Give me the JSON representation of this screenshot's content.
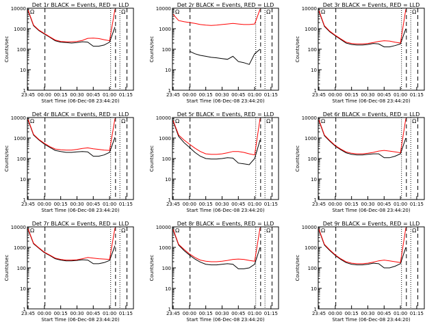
{
  "chart_data": [
    {
      "type": "line",
      "title": "Det 1r BLACK = Events, RED = LLD",
      "xlabel": "Start Time (06-Dec-08 23:44:20)",
      "ylabel": "Counts/sec",
      "yscale": "log",
      "ylim": [
        1,
        10000
      ],
      "xticks": [
        "23:45",
        "00:00",
        "00:15",
        "00:30",
        "00:45",
        "01:00",
        "01:15"
      ],
      "yticks": [
        "1",
        "10",
        "100",
        "1000",
        "10000"
      ],
      "markers": [
        "Ω",
        "Ω"
      ],
      "colors": {
        "events": "#000000",
        "lld": "#ff0000"
      },
      "series": [
        {
          "name": "Events",
          "x": [
            "23:45",
            "23:50",
            "23:55",
            "00:00",
            "00:05",
            "00:10",
            "00:15",
            "00:20",
            "00:25",
            "00:30",
            "00:35",
            "00:40",
            "00:45",
            "00:50",
            "00:55",
            "01:00",
            "01:05"
          ],
          "y": [
            7500,
            1400,
            800,
            550,
            380,
            260,
            220,
            210,
            200,
            210,
            230,
            220,
            140,
            140,
            160,
            220,
            1200
          ]
        },
        {
          "name": "LLD",
          "x": [
            "23:45",
            "23:50",
            "23:55",
            "00:00",
            "00:05",
            "00:10",
            "00:15",
            "00:20",
            "00:25",
            "00:30",
            "00:35",
            "00:40",
            "00:45",
            "00:50",
            "00:55",
            "01:00",
            "01:05"
          ],
          "y": [
            8000,
            1500,
            850,
            580,
            400,
            280,
            240,
            230,
            230,
            240,
            270,
            340,
            350,
            330,
            290,
            260,
            9000
          ]
        }
      ]
    },
    {
      "type": "line",
      "title": "Det 2r BLACK = Events, RED = LLD",
      "xlabel": "Start Time (06-Dec-08 23:44:20)",
      "ylabel": "Counts/sec",
      "yscale": "log",
      "ylim": [
        1,
        10000
      ],
      "xticks": [
        "23:45",
        "00:00",
        "00:15",
        "00:30",
        "00:45",
        "01:00",
        "01:15"
      ],
      "yticks": [
        "1",
        "10",
        "100",
        "1000",
        "10000"
      ],
      "markers": [
        "Ω",
        "Ω"
      ],
      "colors": {
        "events": "#000000",
        "lld": "#ff0000"
      },
      "series": [
        {
          "name": "Events",
          "x": [
            "00:00",
            "00:05",
            "00:10",
            "00:15",
            "00:20",
            "00:25",
            "00:30",
            "00:35",
            "00:40",
            "00:45",
            "00:50",
            "00:55",
            "01:00",
            "01:05"
          ],
          "y": [
            80,
            60,
            50,
            45,
            40,
            38,
            35,
            32,
            45,
            25,
            22,
            18,
            60,
            100
          ]
        },
        {
          "name": "LLD",
          "x": [
            "23:45",
            "23:50",
            "23:55",
            "00:00",
            "00:05",
            "00:10",
            "00:15",
            "00:20",
            "00:25",
            "00:30",
            "00:35",
            "00:40",
            "00:45",
            "00:50",
            "00:55",
            "01:00",
            "01:05"
          ],
          "y": [
            5000,
            2500,
            2200,
            2000,
            1800,
            1600,
            1500,
            1450,
            1500,
            1600,
            1700,
            1800,
            1700,
            1600,
            1600,
            1700,
            9000
          ]
        }
      ]
    },
    {
      "type": "line",
      "title": "Det 3r BLACK = Events, RED = LLD",
      "xlabel": "Start Time (06-Dec-08 23:44:20)",
      "ylabel": "Counts/sec",
      "yscale": "log",
      "ylim": [
        1,
        10000
      ],
      "xticks": [
        "23:45",
        "00:00",
        "00:15",
        "00:30",
        "00:45",
        "01:00",
        "01:15"
      ],
      "yticks": [
        "1",
        "10",
        "100",
        "1000",
        "10000"
      ],
      "markers": [
        "Ω",
        "Ω"
      ],
      "colors": {
        "events": "#000000",
        "lld": "#ff0000"
      },
      "series": [
        {
          "name": "Events",
          "x": [
            "23:45",
            "23:50",
            "23:55",
            "00:00",
            "00:05",
            "00:10",
            "00:15",
            "00:20",
            "00:25",
            "00:30",
            "00:35",
            "00:40",
            "00:45",
            "00:50",
            "00:55",
            "01:00",
            "01:05"
          ],
          "y": [
            7000,
            1300,
            700,
            450,
            300,
            200,
            170,
            160,
            160,
            170,
            190,
            180,
            130,
            130,
            150,
            180,
            1000
          ]
        },
        {
          "name": "LLD",
          "x": [
            "23:45",
            "23:50",
            "23:55",
            "00:00",
            "00:05",
            "00:10",
            "00:15",
            "00:20",
            "00:25",
            "00:30",
            "00:35",
            "00:40",
            "00:45",
            "00:50",
            "00:55",
            "01:00",
            "01:05"
          ],
          "y": [
            7500,
            1400,
            750,
            480,
            320,
            220,
            190,
            180,
            180,
            190,
            210,
            240,
            260,
            250,
            220,
            200,
            9000
          ]
        }
      ]
    },
    {
      "type": "line",
      "title": "Det 4r BLACK = Events, RED = LLD",
      "xlabel": "Start Time (06-Dec-08 23:44:20)",
      "ylabel": "Counts/sec",
      "yscale": "log",
      "ylim": [
        1,
        10000
      ],
      "xticks": [
        "23:45",
        "00:00",
        "00:15",
        "00:30",
        "00:45",
        "01:00",
        "01:15"
      ],
      "yticks": [
        "1",
        "10",
        "100",
        "1000",
        "10000"
      ],
      "markers": [
        "Ω",
        "Ω"
      ],
      "colors": {
        "events": "#000000",
        "lld": "#ff0000"
      },
      "series": [
        {
          "name": "Events",
          "x": [
            "23:45",
            "23:50",
            "23:55",
            "00:00",
            "00:05",
            "00:10",
            "00:15",
            "00:20",
            "00:25",
            "00:30",
            "00:35",
            "00:40",
            "00:45",
            "00:50",
            "00:55",
            "01:00",
            "01:05"
          ],
          "y": [
            7500,
            1400,
            800,
            500,
            350,
            250,
            220,
            200,
            200,
            210,
            220,
            210,
            130,
            130,
            150,
            200,
            1100
          ]
        },
        {
          "name": "LLD",
          "x": [
            "23:45",
            "23:50",
            "23:55",
            "00:00",
            "00:05",
            "00:10",
            "00:15",
            "00:20",
            "00:25",
            "00:30",
            "00:35",
            "00:40",
            "00:45",
            "00:50",
            "00:55",
            "01:00",
            "01:05"
          ],
          "y": [
            8000,
            1500,
            850,
            550,
            380,
            290,
            270,
            260,
            260,
            280,
            310,
            330,
            300,
            280,
            260,
            250,
            9000
          ]
        }
      ]
    },
    {
      "type": "line",
      "title": "Det 5r BLACK = Events, RED = LLD",
      "xlabel": "Start Time (06-Dec-08 23:44:20)",
      "ylabel": "Counts/sec",
      "yscale": "log",
      "ylim": [
        1,
        10000
      ],
      "xticks": [
        "23:45",
        "00:00",
        "00:15",
        "00:30",
        "00:45",
        "01:00",
        "01:15"
      ],
      "yticks": [
        "1",
        "10",
        "100",
        "1000",
        "10000"
      ],
      "markers": [
        "Ω",
        "Ω"
      ],
      "colors": {
        "events": "#000000",
        "lld": "#ff0000"
      },
      "series": [
        {
          "name": "Events",
          "x": [
            "23:45",
            "23:50",
            "23:55",
            "00:00",
            "00:05",
            "00:10",
            "00:15",
            "00:20",
            "00:25",
            "00:30",
            "00:35",
            "00:40",
            "00:45",
            "00:50",
            "00:55",
            "01:00",
            "01:05"
          ],
          "y": [
            6500,
            1200,
            600,
            350,
            200,
            130,
            100,
            95,
            95,
            100,
            110,
            105,
            60,
            55,
            50,
            100,
            800
          ]
        },
        {
          "name": "LLD",
          "x": [
            "23:45",
            "23:50",
            "23:55",
            "00:00",
            "00:05",
            "00:10",
            "00:15",
            "00:20",
            "00:25",
            "00:30",
            "00:35",
            "00:40",
            "00:45",
            "00:50",
            "00:55",
            "01:00",
            "01:05"
          ],
          "y": [
            7000,
            1400,
            800,
            500,
            320,
            220,
            170,
            160,
            160,
            170,
            190,
            220,
            220,
            200,
            170,
            150,
            9000
          ]
        }
      ]
    },
    {
      "type": "line",
      "title": "Det 6r BLACK = Events, RED = LLD",
      "xlabel": "Start Time (06-Dec-08 23:44:20)",
      "ylabel": "Counts/sec",
      "yscale": "log",
      "ylim": [
        1,
        10000
      ],
      "xticks": [
        "23:45",
        "00:00",
        "00:15",
        "00:30",
        "00:45",
        "01:00",
        "01:15"
      ],
      "yticks": [
        "1",
        "10",
        "100",
        "1000",
        "10000"
      ],
      "markers": [
        "Ω",
        "Ω"
      ],
      "colors": {
        "events": "#000000",
        "lld": "#ff0000"
      },
      "series": [
        {
          "name": "Events",
          "x": [
            "23:45",
            "23:50",
            "23:55",
            "00:00",
            "00:05",
            "00:10",
            "00:15",
            "00:20",
            "00:25",
            "00:30",
            "00:35",
            "00:40",
            "00:45",
            "00:50",
            "00:55",
            "01:00",
            "01:05"
          ],
          "y": [
            7000,
            1300,
            700,
            400,
            270,
            190,
            160,
            150,
            150,
            160,
            170,
            170,
            110,
            110,
            130,
            170,
            1000
          ]
        },
        {
          "name": "LLD",
          "x": [
            "23:45",
            "23:50",
            "23:55",
            "00:00",
            "00:05",
            "00:10",
            "00:15",
            "00:20",
            "00:25",
            "00:30",
            "00:35",
            "00:40",
            "00:45",
            "00:50",
            "00:55",
            "01:00",
            "01:05"
          ],
          "y": [
            7500,
            1400,
            750,
            430,
            290,
            210,
            180,
            170,
            170,
            180,
            200,
            230,
            250,
            230,
            210,
            190,
            9000
          ]
        }
      ]
    },
    {
      "type": "line",
      "title": "Det 7r BLACK = Events, RED = LLD",
      "xlabel": "Start Time (06-Dec-08 23:44:20)",
      "ylabel": "Counts/sec",
      "yscale": "log",
      "ylim": [
        1,
        10000
      ],
      "xticks": [
        "23:45",
        "00:00",
        "00:15",
        "00:30",
        "00:45",
        "01:00",
        "01:15"
      ],
      "yticks": [
        "1",
        "10",
        "100",
        "1000",
        "10000"
      ],
      "markers": [
        "Ω",
        "Ω"
      ],
      "colors": {
        "events": "#000000",
        "lld": "#ff0000"
      },
      "series": [
        {
          "name": "Events",
          "x": [
            "23:45",
            "23:50",
            "23:55",
            "00:00",
            "00:05",
            "00:10",
            "00:15",
            "00:20",
            "00:25",
            "00:30",
            "00:35",
            "00:40",
            "00:45",
            "00:50",
            "00:55",
            "01:00",
            "01:05"
          ],
          "y": [
            7500,
            1500,
            900,
            550,
            400,
            280,
            240,
            220,
            220,
            230,
            250,
            240,
            160,
            160,
            180,
            230,
            1200
          ]
        },
        {
          "name": "LLD",
          "x": [
            "23:45",
            "23:50",
            "23:55",
            "00:00",
            "00:05",
            "00:10",
            "00:15",
            "00:20",
            "00:25",
            "00:30",
            "00:35",
            "00:40",
            "00:45",
            "00:50",
            "00:55",
            "01:00",
            "01:05"
          ],
          "y": [
            8000,
            1600,
            950,
            580,
            420,
            300,
            260,
            240,
            240,
            250,
            280,
            320,
            300,
            280,
            270,
            260,
            9000
          ]
        }
      ]
    },
    {
      "type": "line",
      "title": "Det 8r BLACK = Events, RED = LLD",
      "xlabel": "Start Time (06-Dec-08 23:44:20)",
      "ylabel": "Counts/sec",
      "yscale": "log",
      "ylim": [
        1,
        10000
      ],
      "xticks": [
        "23:45",
        "00:00",
        "00:15",
        "00:30",
        "00:45",
        "01:00",
        "01:15"
      ],
      "yticks": [
        "1",
        "10",
        "100",
        "1000",
        "10000"
      ],
      "markers": [
        "Ω",
        "Ω"
      ],
      "colors": {
        "events": "#000000",
        "lld": "#ff0000"
      },
      "series": [
        {
          "name": "Events",
          "x": [
            "23:45",
            "23:50",
            "23:55",
            "00:00",
            "00:05",
            "00:10",
            "00:15",
            "00:20",
            "00:25",
            "00:30",
            "00:35",
            "00:40",
            "00:45",
            "00:50",
            "00:55",
            "01:00",
            "01:05"
          ],
          "y": [
            7000,
            1300,
            700,
            420,
            270,
            190,
            150,
            140,
            140,
            150,
            160,
            150,
            90,
            90,
            100,
            150,
            1000
          ]
        },
        {
          "name": "LLD",
          "x": [
            "23:45",
            "23:50",
            "23:55",
            "00:00",
            "00:05",
            "00:10",
            "00:15",
            "00:20",
            "00:25",
            "00:30",
            "00:35",
            "00:40",
            "00:45",
            "00:50",
            "00:55",
            "01:00",
            "01:05"
          ],
          "y": [
            7500,
            1400,
            800,
            480,
            320,
            240,
            210,
            200,
            200,
            210,
            230,
            260,
            270,
            260,
            230,
            210,
            9000
          ]
        }
      ]
    },
    {
      "type": "line",
      "title": "Det 9r BLACK = Events, RED = LLD",
      "xlabel": "Start Time (06-Dec-08 23:44:20)",
      "ylabel": "Counts/sec",
      "yscale": "log",
      "ylim": [
        1,
        10000
      ],
      "xticks": [
        "23:45",
        "00:00",
        "00:15",
        "00:30",
        "00:45",
        "01:00",
        "01:15"
      ],
      "yticks": [
        "1",
        "10",
        "100",
        "1000",
        "10000"
      ],
      "markers": [
        "Ω",
        "Ω"
      ],
      "colors": {
        "events": "#000000",
        "lld": "#ff0000"
      },
      "series": [
        {
          "name": "Events",
          "x": [
            "23:45",
            "23:50",
            "23:55",
            "00:00",
            "00:05",
            "00:10",
            "00:15",
            "00:20",
            "00:25",
            "00:30",
            "00:35",
            "00:40",
            "00:45",
            "00:50",
            "00:55",
            "01:00",
            "01:05"
          ],
          "y": [
            7000,
            1300,
            700,
            400,
            260,
            180,
            150,
            140,
            140,
            150,
            170,
            160,
            100,
            100,
            120,
            160,
            1000
          ]
        },
        {
          "name": "LLD",
          "x": [
            "23:45",
            "23:50",
            "23:55",
            "00:00",
            "00:05",
            "00:10",
            "00:15",
            "00:20",
            "00:25",
            "00:30",
            "00:35",
            "00:40",
            "00:45",
            "00:50",
            "00:55",
            "01:00",
            "01:05"
          ],
          "y": [
            7500,
            1400,
            750,
            430,
            280,
            200,
            170,
            160,
            160,
            170,
            190,
            220,
            240,
            220,
            200,
            180,
            9000
          ]
        }
      ]
    }
  ]
}
